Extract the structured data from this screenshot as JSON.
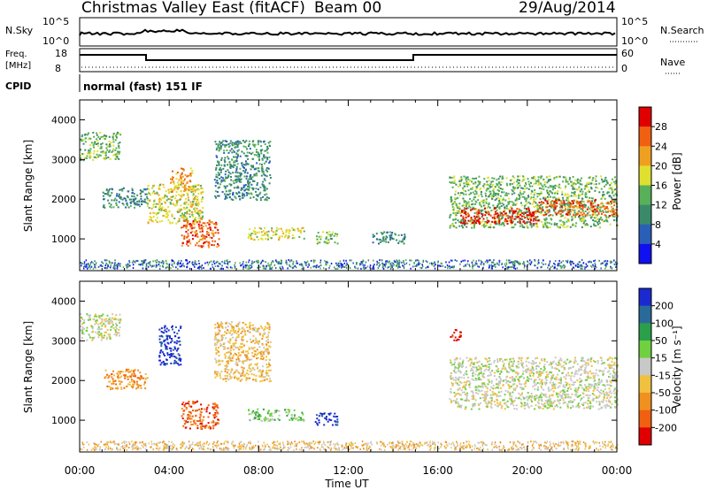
{
  "header": {
    "title": "Christmas Valley East (fitACF)",
    "beam": "Beam 00",
    "date": "29/Aug/2014"
  },
  "status": {
    "nsky_label": "N.Sky",
    "nsky_ticks": [
      "10^5",
      "10^0"
    ],
    "nsearch_label": "N.Search",
    "freq_label_1": "Freq.",
    "freq_label_2": "[MHz]",
    "freq_ticks": [
      "18",
      "8"
    ],
    "nave_label": "Nave",
    "nave_ticks": [
      "60",
      "0"
    ],
    "cpid_label": "CPID",
    "cpid_text": "normal (fast) 151 IF"
  },
  "chart_data": [
    {
      "type": "heatmap",
      "name": "Power",
      "ylabel": "Slant Range [km]",
      "xlabel": "Time UT",
      "xlim": [
        0,
        24
      ],
      "ylim": [
        200,
        4500
      ],
      "x_ticks": [
        "00:00",
        "04:00",
        "08:00",
        "12:00",
        "16:00",
        "20:00",
        "00:00"
      ],
      "y_ticks": [
        1000,
        2000,
        3000,
        4000
      ],
      "colorbar": {
        "label": "Power [dB]",
        "ticks": [
          "4",
          "8",
          "12",
          "16",
          "20",
          "24",
          "28"
        ],
        "range": [
          0,
          30
        ],
        "colors": [
          "#1010f0",
          "#2a5fb8",
          "#3a8a6a",
          "#58b058",
          "#e0e030",
          "#f0a020",
          "#f06010",
          "#e00000"
        ]
      },
      "regions": [
        {
          "t0": 0.0,
          "t1": 1.8,
          "r0": 3000,
          "r1": 3700,
          "level": 3
        },
        {
          "t0": 1.0,
          "t1": 3.0,
          "r0": 1800,
          "r1": 2300,
          "level": 2
        },
        {
          "t0": 3.0,
          "t1": 5.5,
          "r0": 1400,
          "r1": 2400,
          "level": 4
        },
        {
          "t0": 4.5,
          "t1": 6.2,
          "r0": 800,
          "r1": 1500,
          "level": 6
        },
        {
          "t0": 4.0,
          "t1": 5.0,
          "r0": 2200,
          "r1": 2800,
          "level": 5
        },
        {
          "t0": 6.0,
          "t1": 8.5,
          "r0": 2000,
          "r1": 3500,
          "level": 2
        },
        {
          "t0": 7.5,
          "t1": 10.0,
          "r0": 1000,
          "r1": 1300,
          "level": 4
        },
        {
          "t0": 10.5,
          "t1": 11.5,
          "r0": 900,
          "r1": 1200,
          "level": 3
        },
        {
          "t0": 13.0,
          "t1": 14.5,
          "r0": 900,
          "r1": 1200,
          "level": 2
        },
        {
          "t0": 16.5,
          "t1": 24.0,
          "r0": 1300,
          "r1": 2600,
          "level": 3
        },
        {
          "t0": 17.0,
          "t1": 20.5,
          "r0": 1400,
          "r1": 1800,
          "level": 7
        },
        {
          "t0": 20.5,
          "t1": 24.0,
          "r0": 1600,
          "r1": 2000,
          "level": 6
        }
      ]
    },
    {
      "type": "heatmap",
      "name": "Velocity",
      "ylabel": "Slant Range [km]",
      "xlabel": "Time UT",
      "xlim": [
        0,
        24
      ],
      "ylim": [
        200,
        4500
      ],
      "x_ticks": [
        "00:00",
        "04:00",
        "08:00",
        "12:00",
        "16:00",
        "20:00",
        "00:00"
      ],
      "y_ticks": [
        1000,
        2000,
        3000,
        4000
      ],
      "colorbar": {
        "label": "Velocity [m s⁻¹]",
        "ticks": [
          "200",
          "100",
          "50",
          "15",
          "-15",
          "-50",
          "-100",
          "-200"
        ],
        "range": [
          -250,
          250
        ],
        "colors": [
          "#1a2ad0",
          "#2a6a9a",
          "#2aa04a",
          "#70d040",
          "#c8c8c8",
          "#f0c040",
          "#f09020",
          "#f06010",
          "#e00000"
        ]
      },
      "regions": [
        {
          "t0": 0.0,
          "t1": 1.8,
          "r0": 3000,
          "r1": 3700,
          "level": 4
        },
        {
          "t0": 1.0,
          "t1": 3.0,
          "r0": 1800,
          "r1": 2300,
          "level": 6
        },
        {
          "t0": 3.5,
          "t1": 4.5,
          "r0": 2400,
          "r1": 3400,
          "level": 0
        },
        {
          "t0": 4.5,
          "t1": 6.2,
          "r0": 800,
          "r1": 1500,
          "level": 7
        },
        {
          "t0": 6.0,
          "t1": 8.5,
          "r0": 2000,
          "r1": 3500,
          "level": 5
        },
        {
          "t0": 7.5,
          "t1": 10.0,
          "r0": 1000,
          "r1": 1300,
          "level": 3
        },
        {
          "t0": 10.5,
          "t1": 11.5,
          "r0": 900,
          "r1": 1200,
          "level": 0
        },
        {
          "t0": 16.5,
          "t1": 17.0,
          "r0": 3000,
          "r1": 3300,
          "level": 8
        },
        {
          "t0": 16.5,
          "t1": 24.0,
          "r0": 1300,
          "r1": 2600,
          "level": 4
        }
      ]
    }
  ]
}
